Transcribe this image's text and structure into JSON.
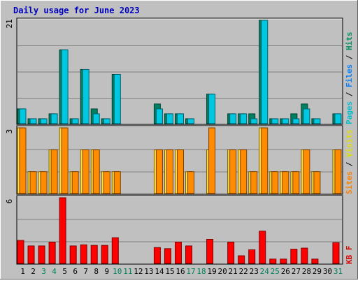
{
  "title": "Daily usage for June 2023",
  "chart_data": [
    {
      "type": "bar",
      "panel": "top",
      "ymax_label": "21",
      "ylim": [
        0,
        21
      ],
      "right_label": [
        {
          "text": "Pages",
          "color": "#00c0d0"
        },
        {
          "text": " / ",
          "color": "#000000"
        },
        {
          "text": "Files",
          "color": "#0080ff"
        },
        {
          "text": " / ",
          "color": "#000000"
        },
        {
          "text": "Hits",
          "color": "#009060"
        }
      ],
      "series": [
        {
          "name": "Hits",
          "color": "#008060",
          "values": [
            3,
            1,
            1,
            2,
            15,
            1,
            11,
            3,
            1,
            10,
            0,
            0,
            0,
            4,
            2,
            2,
            1,
            0,
            6,
            0,
            2,
            2,
            2,
            21,
            1,
            1,
            2,
            4,
            1,
            0,
            2
          ]
        },
        {
          "name": "Files",
          "color": "#00c8e0",
          "values": [
            3,
            1,
            1,
            2,
            15,
            1,
            11,
            2,
            1,
            10,
            0,
            0,
            0,
            3,
            2,
            2,
            1,
            0,
            6,
            0,
            2,
            2,
            1,
            21,
            1,
            1,
            1,
            3,
            1,
            0,
            2
          ]
        }
      ]
    },
    {
      "type": "bar",
      "panel": "middle",
      "ymax_label": "3",
      "ylim": [
        0,
        3
      ],
      "right_label": [
        {
          "text": "Sites",
          "color": "#ff8000"
        },
        {
          "text": " / ",
          "color": "#000000"
        },
        {
          "text": "Visits",
          "color": "#e0e000"
        }
      ],
      "series": [
        {
          "name": "Visits",
          "color": "#ffe040",
          "values": [
            3,
            1,
            1,
            2,
            3,
            1,
            2,
            2,
            1,
            1,
            0,
            0,
            0,
            2,
            2,
            2,
            1,
            0,
            2,
            0,
            2,
            2,
            1,
            3,
            1,
            1,
            1,
            2,
            1,
            0,
            2
          ]
        },
        {
          "name": "Sites",
          "color": "#ff8c00",
          "values": [
            3,
            1,
            1,
            2,
            3,
            1,
            2,
            2,
            1,
            1,
            0,
            0,
            0,
            2,
            2,
            2,
            1,
            0,
            3,
            0,
            2,
            2,
            1,
            3,
            1,
            1,
            1,
            2,
            1,
            0,
            2
          ]
        }
      ]
    },
    {
      "type": "bar",
      "panel": "bottom",
      "ymax_label": "6",
      "ylim": [
        0,
        6
      ],
      "right_label": [
        {
          "text": "KB F",
          "color": "#e00000"
        }
      ],
      "series": [
        {
          "name": "KB F",
          "color": "#ff0000",
          "values": [
            2.1,
            1.6,
            1.6,
            1.95,
            6.0,
            1.6,
            1.7,
            1.65,
            1.65,
            2.35,
            0,
            0,
            0,
            1.45,
            1.35,
            1.95,
            1.6,
            0,
            2.2,
            0,
            1.95,
            0.7,
            1.25,
            2.95,
            0.4,
            0.4,
            1.3,
            1.4,
            0.4,
            0,
            1.9
          ]
        }
      ]
    }
  ],
  "x_axis": {
    "days": [
      "1",
      "2",
      "3",
      "4",
      "5",
      "6",
      "7",
      "8",
      "9",
      "10",
      "11",
      "12",
      "13",
      "14",
      "15",
      "16",
      "17",
      "18",
      "19",
      "20",
      "21",
      "22",
      "23",
      "24",
      "25",
      "26",
      "27",
      "28",
      "29",
      "30",
      "31"
    ],
    "weekend": [
      false,
      false,
      true,
      true,
      false,
      false,
      false,
      false,
      false,
      true,
      true,
      false,
      false,
      false,
      false,
      false,
      true,
      true,
      false,
      false,
      false,
      false,
      false,
      true,
      true,
      false,
      false,
      false,
      false,
      false,
      true
    ],
    "weekday_color": "#000000",
    "weekend_color": "#00805a"
  },
  "colors": {
    "background": "#c0c0c0",
    "plot_background": "#c0c0c0",
    "title": "#0000c0",
    "gridline": "#808080"
  }
}
